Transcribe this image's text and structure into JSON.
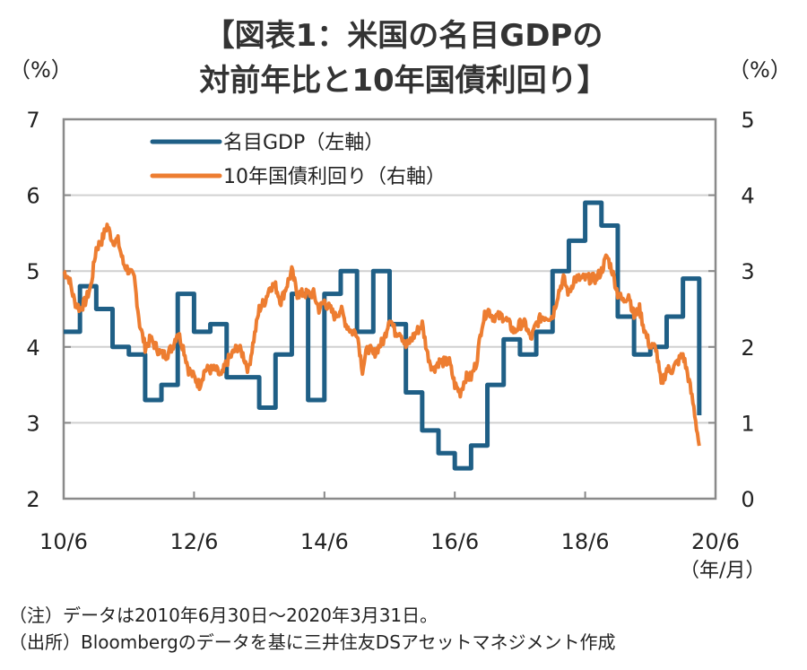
{
  "title": {
    "line1": "【図表1：米国の名目GDPの",
    "line2": "対前年比と10年国債利回り】"
  },
  "notes": {
    "note": "（注）データは2010年6月30日～2020年3月31日。",
    "source": "（出所）Bloombergのデータを基に三井住友DSアセットマネジメント作成"
  },
  "chart_data": {
    "type": "line",
    "title": "【図表1：米国の名目GDPの対前年比と10年国債利回り】",
    "xlabel": "（年/月）",
    "ylabel_left": "（%）",
    "ylabel_right": "（%）",
    "x_range": [
      "2010-06",
      "2020-06"
    ],
    "x_ticks": [
      "10/6",
      "12/6",
      "14/6",
      "16/6",
      "18/6",
      "20/6"
    ],
    "ylim_left": [
      2,
      7
    ],
    "ylim_right": [
      0,
      5
    ],
    "y_ticks_left": [
      "7",
      "6",
      "5",
      "4",
      "3",
      "2"
    ],
    "y_ticks_right": [
      "5",
      "4",
      "3",
      "2",
      "1",
      "0"
    ],
    "grid": true,
    "legend_position": "top-left",
    "series": [
      {
        "name": "名目GDP（左軸）",
        "axis": "left",
        "color": "#1f5f86",
        "frequency": "quarterly",
        "start": "2010Q2",
        "values": [
          4.2,
          4.8,
          4.5,
          4.0,
          3.9,
          3.3,
          3.5,
          4.7,
          4.2,
          4.3,
          3.6,
          3.6,
          3.2,
          3.9,
          4.7,
          3.3,
          4.7,
          5.0,
          4.2,
          5.0,
          4.3,
          3.4,
          2.9,
          2.6,
          2.4,
          2.7,
          3.5,
          4.1,
          3.9,
          4.2,
          5.0,
          5.4,
          5.9,
          5.6,
          4.4,
          3.9,
          4.0,
          4.4,
          4.9,
          3.1
        ]
      },
      {
        "name": "10年国債利回り（右軸）",
        "axis": "right",
        "color": "#ed7d31",
        "frequency": "monthly",
        "start": "2010-06",
        "values": [
          3.0,
          2.9,
          2.6,
          2.5,
          2.6,
          2.8,
          3.3,
          3.4,
          3.6,
          3.4,
          3.4,
          3.1,
          3.0,
          2.9,
          2.3,
          2.0,
          2.1,
          2.0,
          1.9,
          1.9,
          2.0,
          2.2,
          2.0,
          1.7,
          1.6,
          1.5,
          1.7,
          1.7,
          1.7,
          1.6,
          1.8,
          1.9,
          2.0,
          1.9,
          1.7,
          2.1,
          2.5,
          2.6,
          2.8,
          2.8,
          2.6,
          2.8,
          3.0,
          2.7,
          2.7,
          2.7,
          2.7,
          2.5,
          2.6,
          2.5,
          2.4,
          2.5,
          2.3,
          2.2,
          2.2,
          1.7,
          2.0,
          1.9,
          2.0,
          2.1,
          2.4,
          2.2,
          2.2,
          2.0,
          2.1,
          2.2,
          2.3,
          1.9,
          1.7,
          1.8,
          1.8,
          1.8,
          1.5,
          1.4,
          1.6,
          1.6,
          1.8,
          2.3,
          2.5,
          2.4,
          2.4,
          2.4,
          2.3,
          2.2,
          2.3,
          2.3,
          2.1,
          2.3,
          2.4,
          2.4,
          2.4,
          2.7,
          2.9,
          2.7,
          2.9,
          2.9,
          2.9,
          2.9,
          2.9,
          3.0,
          3.2,
          3.0,
          2.7,
          2.6,
          2.7,
          2.4,
          2.5,
          2.2,
          2.0,
          2.0,
          1.5,
          1.7,
          1.7,
          1.8,
          1.9,
          1.6,
          1.2,
          0.7
        ]
      }
    ]
  }
}
